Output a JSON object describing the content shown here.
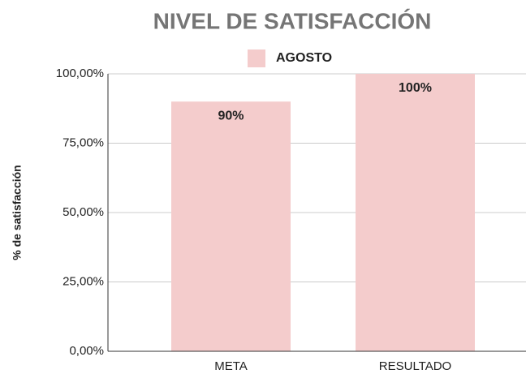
{
  "chart_data": {
    "type": "bar",
    "title": "NIVEL DE SATISFACCIÓN",
    "series": [
      {
        "name": "AGOSTO",
        "color": "#f4cccc",
        "values": [
          90,
          100
        ],
        "value_labels": [
          "90%",
          "100%"
        ]
      }
    ],
    "categories": [
      "META",
      "RESULTADO"
    ],
    "y_label": "% de satisfacción",
    "ylim": [
      0,
      100
    ],
    "yticks": [
      {
        "value": 0,
        "label": "0,00%"
      },
      {
        "value": 25,
        "label": "25,00%"
      },
      {
        "value": 50,
        "label": "50,00%"
      },
      {
        "value": 75,
        "label": "75,00%"
      },
      {
        "value": 100,
        "label": "100,00%"
      }
    ],
    "grid": true
  }
}
